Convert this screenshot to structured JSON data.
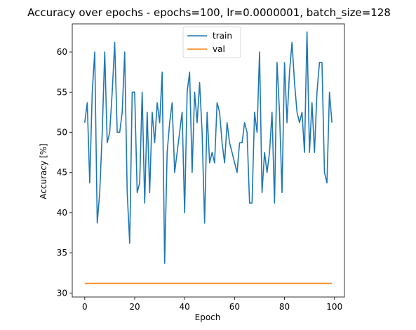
{
  "chart_data": {
    "type": "line",
    "title": "Accuracy over epochs - epochs=100, lr=0.0000001, batch_size=128",
    "xlabel": "Epoch",
    "ylabel": "Accuracy [%]",
    "xlim": [
      -5,
      104
    ],
    "ylim": [
      29.5,
      63.5
    ],
    "xticks": [
      0,
      20,
      40,
      60,
      80,
      100
    ],
    "yticks": [
      30,
      35,
      40,
      45,
      50,
      55,
      60
    ],
    "grid": false,
    "legend_position": "top-center",
    "series": [
      {
        "name": "train",
        "color": "#1f77b4",
        "x": [
          0,
          1,
          2,
          3,
          4,
          5,
          6,
          7,
          8,
          9,
          10,
          11,
          12,
          13,
          14,
          15,
          16,
          17,
          18,
          19,
          20,
          21,
          22,
          23,
          24,
          25,
          26,
          27,
          28,
          29,
          30,
          31,
          32,
          33,
          34,
          35,
          36,
          37,
          38,
          39,
          40,
          41,
          42,
          43,
          44,
          45,
          46,
          47,
          48,
          49,
          50,
          51,
          52,
          53,
          54,
          55,
          56,
          57,
          58,
          59,
          60,
          61,
          62,
          63,
          64,
          65,
          66,
          67,
          68,
          69,
          70,
          71,
          72,
          73,
          74,
          75,
          76,
          77,
          78,
          79,
          80,
          81,
          82,
          83,
          84,
          85,
          86,
          87,
          88,
          89,
          90,
          91,
          92,
          93,
          94,
          95,
          96,
          97,
          98,
          99
        ],
        "values": [
          51.2,
          53.7,
          43.7,
          55.0,
          60.0,
          38.7,
          42.5,
          50.0,
          60.0,
          48.7,
          50.0,
          55.0,
          61.2,
          50.0,
          50.0,
          52.5,
          60.0,
          42.5,
          36.2,
          55.0,
          55.0,
          42.5,
          43.7,
          55.0,
          41.2,
          52.5,
          42.5,
          52.5,
          48.7,
          53.7,
          51.2,
          57.5,
          33.7,
          47.5,
          51.2,
          53.7,
          45.0,
          47.5,
          50.0,
          52.5,
          40.0,
          55.0,
          57.5,
          45.0,
          55.0,
          51.2,
          56.2,
          50.0,
          38.7,
          52.5,
          46.2,
          47.5,
          46.2,
          53.7,
          52.5,
          48.7,
          46.2,
          51.2,
          48.7,
          47.5,
          46.2,
          45.0,
          48.7,
          48.7,
          51.2,
          50.0,
          41.2,
          41.2,
          52.5,
          50.0,
          60.0,
          42.5,
          47.5,
          45.0,
          47.5,
          52.5,
          41.2,
          58.7,
          52.5,
          42.5,
          58.7,
          51.2,
          57.5,
          61.2,
          56.2,
          52.5,
          51.2,
          52.5,
          47.5,
          62.5,
          47.5,
          53.7,
          47.5,
          55.0,
          58.7,
          58.7,
          45.0,
          43.7,
          55.0,
          51.2
        ]
      },
      {
        "name": "val",
        "color": "#ff7f0e",
        "x": [
          0,
          99
        ],
        "values": [
          31.2,
          31.2
        ]
      }
    ]
  }
}
